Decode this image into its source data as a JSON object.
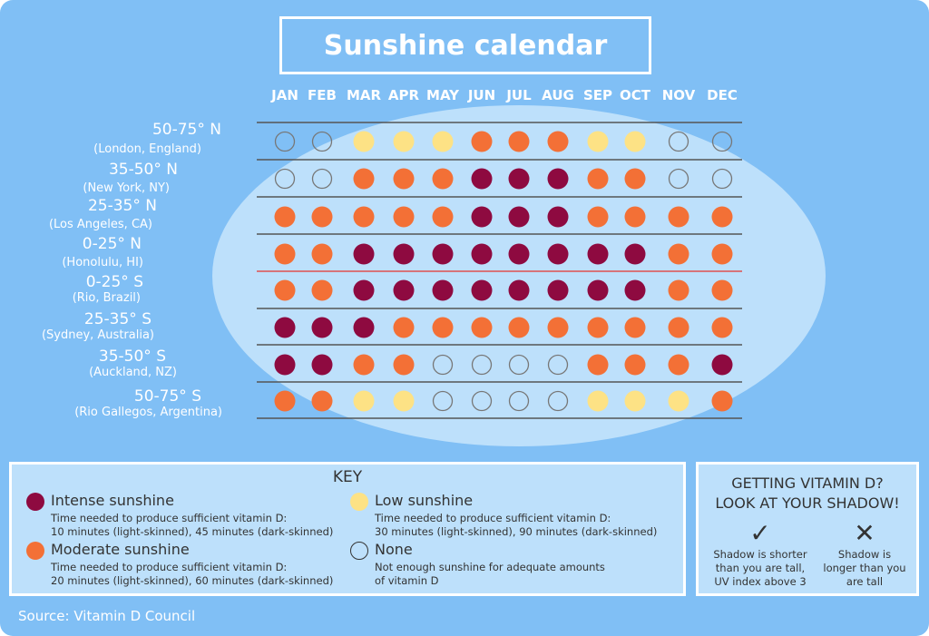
{
  "title": "Sunshine calendar",
  "colors": {
    "background": "#80bff5",
    "map": "#bde0fb",
    "intense": "#8e0a40",
    "moderate": "#f37036",
    "low": "#fde285",
    "none": "#777777",
    "equator": "#e05050"
  },
  "chart_data": {
    "type": "heatmap",
    "title": "Sunshine calendar",
    "columns": [
      "JAN",
      "FEB",
      "MAR",
      "APR",
      "MAY",
      "JUN",
      "JUL",
      "AUG",
      "SEP",
      "OCT",
      "NOV",
      "DEC"
    ],
    "rows": [
      {
        "band": "50-75° N",
        "example": "(London, England)",
        "values": [
          "none",
          "none",
          "low",
          "low",
          "low",
          "moderate",
          "moderate",
          "moderate",
          "low",
          "low",
          "none",
          "none"
        ]
      },
      {
        "band": "35-50° N",
        "example": "(New York, NY)",
        "values": [
          "none",
          "none",
          "moderate",
          "moderate",
          "moderate",
          "intense",
          "intense",
          "intense",
          "moderate",
          "moderate",
          "none",
          "none"
        ]
      },
      {
        "band": "25-35° N",
        "example": "(Los Angeles, CA)",
        "values": [
          "moderate",
          "moderate",
          "moderate",
          "moderate",
          "moderate",
          "intense",
          "intense",
          "intense",
          "moderate",
          "moderate",
          "moderate",
          "moderate"
        ]
      },
      {
        "band": "0-25° N",
        "example": "(Honolulu, HI)",
        "values": [
          "moderate",
          "moderate",
          "intense",
          "intense",
          "intense",
          "intense",
          "intense",
          "intense",
          "intense",
          "intense",
          "moderate",
          "moderate"
        ]
      },
      {
        "band": "0-25° S",
        "example": "(Rio, Brazil)",
        "values": [
          "moderate",
          "moderate",
          "intense",
          "intense",
          "intense",
          "intense",
          "intense",
          "intense",
          "intense",
          "intense",
          "moderate",
          "moderate"
        ]
      },
      {
        "band": "25-35° S",
        "example": "(Sydney, Australia)",
        "values": [
          "intense",
          "intense",
          "intense",
          "moderate",
          "moderate",
          "moderate",
          "moderate",
          "moderate",
          "moderate",
          "moderate",
          "moderate",
          "moderate"
        ]
      },
      {
        "band": "35-50° S",
        "example": "(Auckland, NZ)",
        "values": [
          "intense",
          "intense",
          "moderate",
          "moderate",
          "none",
          "none",
          "none",
          "none",
          "moderate",
          "moderate",
          "moderate",
          "intense"
        ]
      },
      {
        "band": "50-75° S",
        "example": "(Rio Gallegos, Argentina)",
        "values": [
          "moderate",
          "moderate",
          "low",
          "low",
          "none",
          "none",
          "none",
          "none",
          "low",
          "low",
          "low",
          "moderate"
        ]
      }
    ]
  },
  "key": {
    "title": "KEY",
    "items": [
      {
        "level": "intense",
        "label": "Intense sunshine",
        "desc1": "Time needed to produce sufficient vitamin D:",
        "desc2": "10 minutes (light-skinned), 45 minutes (dark-skinned)"
      },
      {
        "level": "moderate",
        "label": "Moderate sunshine",
        "desc1": "Time needed to produce sufficient vitamin D:",
        "desc2": "20 minutes (light-skinned), 60 minutes (dark-skinned)"
      },
      {
        "level": "low",
        "label": "Low sunshine",
        "desc1": "Time needed to produce sufficient vitamin D:",
        "desc2": "30 minutes (light-skinned), 90 minutes (dark-skinned)"
      },
      {
        "level": "none",
        "label": "None",
        "desc1": "Not enough sunshine for adequate amounts",
        "desc2": "of vitamin D"
      }
    ]
  },
  "shadow": {
    "title1": "GETTING VITAMIN D?",
    "title2": "LOOK AT YOUR SHADOW!",
    "yes_icon": "checkmark-icon",
    "yes": [
      "Shadow is shorter",
      "than you are tall,",
      "UV index above 3"
    ],
    "no_icon": "cross-icon",
    "no": [
      "Shadow is",
      "longer than you",
      "are tall"
    ]
  },
  "source": "Source: Vitamin D Council"
}
